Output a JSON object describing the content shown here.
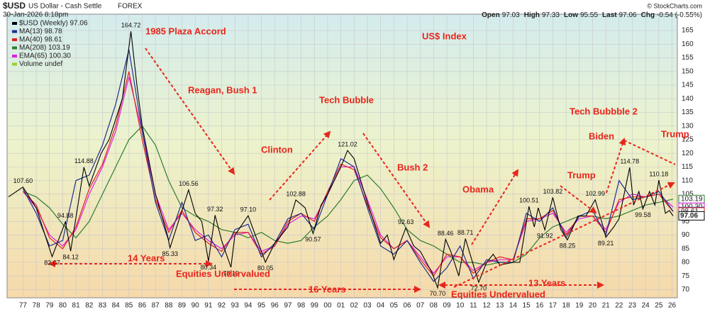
{
  "header": {
    "symbol": "$USD",
    "name": "US Dollar - Cash Settle",
    "exchange": "FOREX",
    "date": "30-Jan-2026 8:18pm",
    "quote": [
      {
        "label": "Open",
        "value": "97.03"
      },
      {
        "label": "High",
        "value": "97.33"
      },
      {
        "label": "Low",
        "value": "95.55"
      },
      {
        "label": "Last",
        "value": "97.06"
      },
      {
        "label": "Chg",
        "value": "-0.54 (-0.55%)"
      }
    ],
    "copyright": "© StockCharts.com"
  },
  "chart_data": {
    "type": "line",
    "volume_legend": "Volume undef",
    "annotations": [
      "1985 Plaza Accord",
      "US$ Index",
      "Reagan, Bush 1",
      "Tech Bubble",
      "Clinton",
      "Bush 2",
      "Obama",
      "Trump",
      "Biden",
      "Tech Bubbble 2",
      "Trump",
      "14 Years",
      "Equities Undervalued",
      "16 Years",
      "Equities Undervalued",
      "13 Years"
    ],
    "xlim": [
      1975.8,
      2026.4
    ],
    "ylim": [
      67,
      171
    ],
    "yticks": [
      70,
      75,
      80,
      85,
      90,
      95,
      100,
      105,
      110,
      115,
      120,
      125,
      130,
      135,
      140,
      145,
      150,
      155,
      160,
      165
    ],
    "xticks": [
      {
        "value": 1977,
        "label": "77"
      },
      {
        "value": 1978,
        "label": "78"
      },
      {
        "value": 1979,
        "label": "79"
      },
      {
        "value": 1980,
        "label": "80"
      },
      {
        "value": 1981,
        "label": "81"
      },
      {
        "value": 1982,
        "label": "82"
      },
      {
        "value": 1983,
        "label": "83"
      },
      {
        "value": 1984,
        "label": "84"
      },
      {
        "value": 1985,
        "label": "85"
      },
      {
        "value": 1986,
        "label": "86"
      },
      {
        "value": 1987,
        "label": "87"
      },
      {
        "value": 1988,
        "label": "88"
      },
      {
        "value": 1989,
        "label": "89"
      },
      {
        "value": 1990,
        "label": "90"
      },
      {
        "value": 1991,
        "label": "91"
      },
      {
        "value": 1992,
        "label": "92"
      },
      {
        "value": 1993,
        "label": "93"
      },
      {
        "value": 1994,
        "label": "94"
      },
      {
        "value": 1995,
        "label": "95"
      },
      {
        "value": 1996,
        "label": "96"
      },
      {
        "value": 1997,
        "label": "97"
      },
      {
        "value": 1998,
        "label": "98"
      },
      {
        "value": 1999,
        "label": "99"
      },
      {
        "value": 2000,
        "label": "00"
      },
      {
        "value": 2001,
        "label": "01"
      },
      {
        "value": 2002,
        "label": "02"
      },
      {
        "value": 2003,
        "label": "03"
      },
      {
        "value": 2004,
        "label": "04"
      },
      {
        "value": 2005,
        "label": "05"
      },
      {
        "value": 2006,
        "label": "06"
      },
      {
        "value": 2007,
        "label": "07"
      },
      {
        "value": 2008,
        "label": "08"
      },
      {
        "value": 2009,
        "label": "09"
      },
      {
        "value": 2010,
        "label": "10"
      },
      {
        "value": 2011,
        "label": "11"
      },
      {
        "value": 2012,
        "label": "12"
      },
      {
        "value": 2013,
        "label": "13"
      },
      {
        "value": 2014,
        "label": "14"
      },
      {
        "value": 2015,
        "label": "15"
      },
      {
        "value": 2016,
        "label": "16"
      },
      {
        "value": 2017,
        "label": "17"
      },
      {
        "value": 2018,
        "label": "18"
      },
      {
        "value": 2019,
        "label": "19"
      },
      {
        "value": 2020,
        "label": "20"
      },
      {
        "value": 2021,
        "label": "21"
      },
      {
        "value": 2022,
        "label": "22"
      },
      {
        "value": 2023,
        "label": "23"
      },
      {
        "value": 2024,
        "label": "24"
      },
      {
        "value": 2025,
        "label": "25"
      },
      {
        "value": 2026,
        "label": "26"
      }
    ],
    "grid": true,
    "series": [
      {
        "name": "$USD (Weekly) 97.06",
        "color": "#000000",
        "x": [
          1975.9,
          1977.0,
          1978.0,
          1978.8,
          1979.2,
          1980.2,
          1980.6,
          1981.6,
          1982.0,
          1982.9,
          1983.5,
          1984.5,
          1985.15,
          1985.6,
          1986.0,
          1986.6,
          1987.0,
          1987.9,
          1988.1,
          1989.5,
          1990.0,
          1990.5,
          1991.0,
          1991.5,
          1992.0,
          1992.7,
          1993.0,
          1994.0,
          1995.3,
          1996.0,
          1997.0,
          1997.6,
          1998.3,
          1998.9,
          1999.5,
          2000.0,
          2001.0,
          2001.5,
          2002.0,
          2002.5,
          2003.0,
          2004.0,
          2004.5,
          2005.0,
          2005.9,
          2006.5,
          2007.0,
          2007.9,
          2008.3,
          2008.9,
          2009.3,
          2009.9,
          2010.4,
          2011.0,
          2011.4,
          2012.0,
          2012.5,
          2013.0,
          2014.0,
          2014.5,
          2015.2,
          2015.6,
          2015.9,
          2016.4,
          2017.0,
          2017.6,
          2018.1,
          2018.9,
          2019.5,
          2020.2,
          2020.8,
          2021.0,
          2021.6,
          2022.0,
          2022.8,
          2023.1,
          2023.5,
          2023.8,
          2024.3,
          2024.7,
          2025.0,
          2025.5,
          2025.8,
          2026.08
        ],
        "values": [
          104,
          107.6,
          100,
          88,
          82.07,
          94.88,
          84.12,
          114.88,
          108,
          120,
          125,
          140,
          164.72,
          145,
          130,
          115,
          105,
          90,
          85.33,
          106.56,
          98,
          95,
          80.34,
          97.32,
          88,
          78.19,
          90,
          97.1,
          80.05,
          87,
          93,
          102.88,
          100,
          90.57,
          101,
          105,
          115,
          121.02,
          118,
          110,
          102,
          87,
          90,
          81,
          92.63,
          86,
          84,
          76,
          70.7,
          88.46,
          84,
          75,
          88.71,
          79,
          72.7,
          80,
          83,
          79,
          80,
          80,
          100.51,
          93,
          100,
          91.92,
          103.82,
          92,
          88.25,
          97,
          97,
          102.99,
          93,
          89.21,
          93,
          96,
          114.78,
          101,
          106,
          99.58,
          106,
          101,
          110.18,
          98,
          99,
          97.06
        ],
        "value_labels": [
          null,
          "107.60",
          null,
          null,
          "82.07",
          "94.88",
          "84.12",
          "114.88",
          null,
          null,
          null,
          null,
          "164.72",
          null,
          null,
          null,
          null,
          null,
          "85.33",
          "106.56",
          null,
          null,
          "80.34",
          "97.32",
          null,
          "78.19",
          null,
          "97.10",
          "80.05",
          null,
          null,
          "102.88",
          null,
          "90.57",
          null,
          null,
          null,
          "121.02",
          null,
          null,
          null,
          null,
          null,
          null,
          "92.63",
          null,
          null,
          null,
          "70.70",
          "88.46",
          null,
          null,
          "88.71",
          null,
          "72.70",
          null,
          null,
          null,
          null,
          null,
          "100.51",
          null,
          null,
          "91.92",
          "103.82",
          null,
          "88.25",
          null,
          null,
          "102.99",
          null,
          "89.21",
          null,
          null,
          "114.78",
          null,
          null,
          "99.58",
          null,
          null,
          "110.18",
          null,
          null,
          "97.06"
        ]
      },
      {
        "name": "MA(13) 98.78",
        "color": "#1f2f8f",
        "end_label": "98.78",
        "x": [
          1977,
          1978,
          1979,
          1980,
          1981,
          1982,
          1983,
          1984,
          1985,
          1986,
          1987,
          1988,
          1989,
          1990,
          1991,
          1992,
          1993,
          1994,
          1995,
          1996,
          1997,
          1998,
          1999,
          2000,
          2001,
          2002,
          2003,
          2004,
          2005,
          2006,
          2007,
          2008,
          2009,
          2010,
          2011,
          2012,
          2013,
          2014,
          2015,
          2016,
          2017,
          2018,
          2019,
          2020,
          2021,
          2022,
          2023,
          2024,
          2025,
          2026.08
        ],
        "values": [
          107,
          98,
          86,
          88,
          110,
          112,
          123,
          138,
          158,
          128,
          102,
          88,
          102,
          88,
          90,
          82,
          92,
          94,
          82,
          87,
          96,
          98,
          92,
          105,
          118,
          115,
          100,
          86,
          83,
          88,
          80,
          73,
          78,
          86,
          74,
          81,
          80,
          80,
          98,
          95,
          100,
          89,
          97,
          99,
          90,
          110,
          103,
          104,
          106,
          98.78
        ]
      },
      {
        "name": "MA(40) 98.61",
        "color": "#e02020",
        "end_label": "98.61",
        "x": [
          1977,
          1978,
          1979,
          1980,
          1981,
          1982,
          1983,
          1984,
          1985,
          1986,
          1987,
          1988,
          1989,
          1990,
          1991,
          1992,
          1993,
          1994,
          1995,
          1996,
          1997,
          1998,
          1999,
          2000,
          2001,
          2002,
          2003,
          2004,
          2005,
          2006,
          2007,
          2008,
          2009,
          2010,
          2011,
          2012,
          2013,
          2014,
          2015,
          2016,
          2017,
          2018,
          2019,
          2020,
          2021,
          2022,
          2023,
          2024,
          2025,
          2026.08
        ],
        "values": [
          106,
          101,
          89,
          85,
          93,
          107,
          116,
          130,
          150,
          125,
          103,
          91,
          99,
          91,
          87,
          84,
          91,
          91,
          83,
          86,
          95,
          98,
          95,
          106,
          116,
          114,
          101,
          89,
          85,
          88,
          81,
          75,
          83,
          82,
          76,
          80,
          82,
          81,
          96,
          96,
          99,
          90,
          97,
          97,
          91,
          103,
          104,
          104,
          105,
          98.61
        ]
      },
      {
        "name": "MA(208) 103.19",
        "color": "#2e7d32",
        "end_label": "103.19",
        "x": [
          1977,
          1978,
          1979,
          1980,
          1981,
          1982,
          1983,
          1984,
          1985,
          1986,
          1987,
          1988,
          1989,
          1990,
          1991,
          1992,
          1993,
          1994,
          1995,
          1996,
          1997,
          1998,
          1999,
          2000,
          2001,
          2002,
          2003,
          2004,
          2005,
          2006,
          2007,
          2008,
          2009,
          2010,
          2011,
          2012,
          2013,
          2014,
          2015,
          2016,
          2017,
          2018,
          2019,
          2020,
          2021,
          2022,
          2023,
          2024,
          2025,
          2026.08
        ],
        "values": [
          106,
          104,
          100,
          94,
          89,
          95,
          105,
          115,
          125,
          130,
          123,
          110,
          100,
          97,
          95,
          92,
          91,
          89,
          91,
          88,
          87,
          88,
          93,
          97,
          103,
          110,
          112,
          107,
          100,
          92,
          88,
          86,
          83,
          80,
          80,
          79,
          80,
          80,
          83,
          89,
          93,
          95,
          97,
          97,
          96,
          97,
          99,
          101,
          102,
          103.19
        ]
      },
      {
        "name": "EMA(65) 100.30",
        "color": "#e020e0",
        "end_label": "100.30",
        "x": [
          1977,
          1978,
          1979,
          1980,
          1981,
          1982,
          1983,
          1984,
          1985,
          1986,
          1987,
          1988,
          1989,
          1990,
          1991,
          1992,
          1993,
          1994,
          1995,
          1996,
          1997,
          1998,
          1999,
          2000,
          2001,
          2002,
          2003,
          2004,
          2005,
          2006,
          2007,
          2008,
          2009,
          2010,
          2011,
          2012,
          2013,
          2014,
          2015,
          2016,
          2017,
          2018,
          2019,
          2020,
          2021,
          2022,
          2023,
          2024,
          2025,
          2026.08
        ],
        "values": [
          106,
          100,
          90,
          86,
          92,
          105,
          115,
          128,
          148,
          128,
          105,
          92,
          98,
          92,
          88,
          85,
          90,
          91,
          84,
          86,
          94,
          97,
          96,
          105,
          115,
          115,
          103,
          90,
          85,
          88,
          82,
          76,
          82,
          82,
          77,
          80,
          81,
          81,
          95,
          96,
          98,
          91,
          96,
          97,
          92,
          102,
          105,
          104,
          105,
          100.3
        ]
      }
    ]
  }
}
